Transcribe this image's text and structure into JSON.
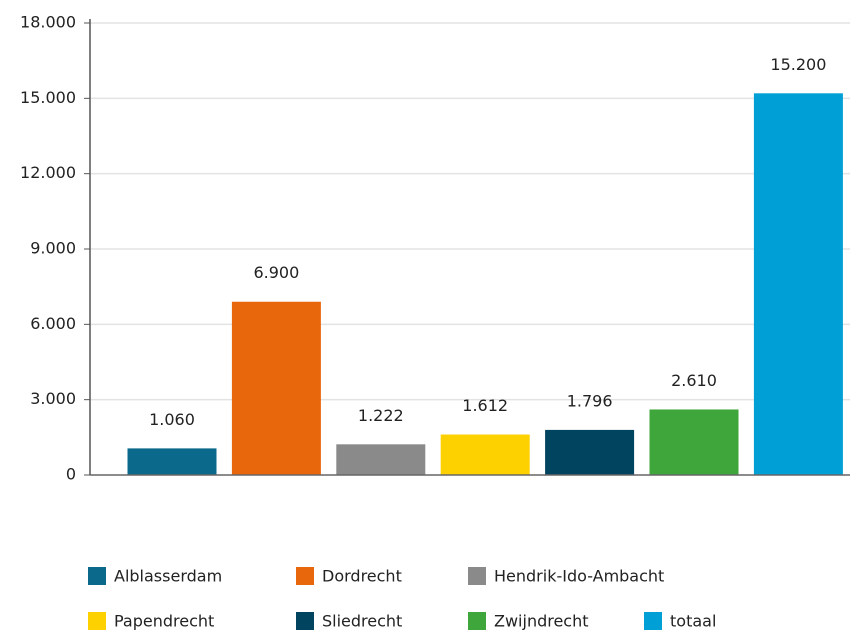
{
  "chart_data": {
    "type": "bar",
    "categories": [
      "Alblasserdam",
      "Dordrecht",
      "Hendrik-Ido-Ambacht",
      "Papendrecht",
      "Sliedrecht",
      "Zwijndrecht",
      "totaal"
    ],
    "values": [
      1060,
      6900,
      1222,
      1612,
      1796,
      2610,
      15200
    ],
    "value_labels": [
      "1.060",
      "6.900",
      "1.222",
      "1.612",
      "1.796",
      "2.610",
      "15.200"
    ],
    "colors": [
      "#0b6a8b",
      "#e8660c",
      "#8a8a8a",
      "#fdd000",
      "#00445f",
      "#3ea63a",
      "#00a0d6"
    ],
    "ylim": [
      0,
      18000
    ],
    "yticks": [
      0,
      {
        "value": 3000,
        "label": "3.000"
      },
      {
        "value": 6000,
        "label": "6.000"
      },
      {
        "value": 9000,
        "label": "9.000"
      },
      {
        "value": 12000,
        "label": "12.000"
      },
      {
        "value": 15000,
        "label": "15.000"
      },
      {
        "value": 18000,
        "label": "18.000"
      }
    ],
    "grid": true,
    "legend": "bottom"
  }
}
